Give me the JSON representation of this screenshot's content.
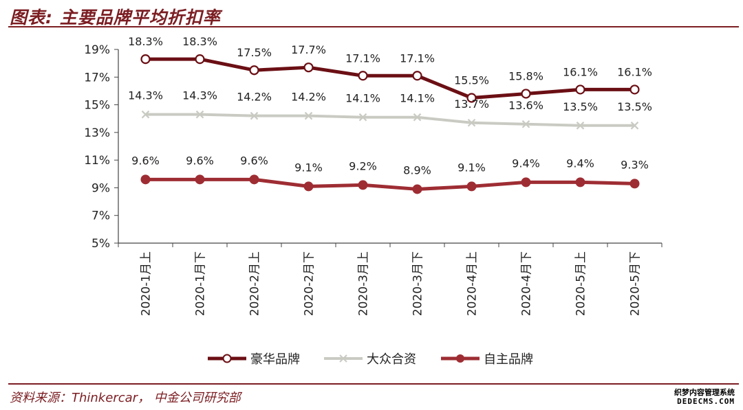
{
  "header": {
    "title": "图表: 主要品牌平均折扣率"
  },
  "footer": {
    "source": "资料来源：Thinkercar， 中金公司研究部"
  },
  "watermark": {
    "line1": "织梦内容管理系统",
    "line2": "DEDECMS.COM"
  },
  "colors": {
    "accent": "#7b1d22",
    "luxury": "#6b0f14",
    "joint": "#c9cbc3",
    "domestic": "#9e2d33"
  },
  "chart_data": {
    "type": "line",
    "title": "图表: 主要品牌平均折扣率",
    "xlabel": "",
    "ylabel": "",
    "categories": [
      "2020-1月上",
      "2020-1月下",
      "2020-2月上",
      "2020-2月下",
      "2020-3月上",
      "2020-3月下",
      "2020-4月上",
      "2020-4月下",
      "2020-5月上",
      "2020-5月下"
    ],
    "ylim": [
      5,
      19
    ],
    "yticks": [
      5,
      7,
      9,
      11,
      13,
      15,
      17,
      19
    ],
    "ytick_labels": [
      "5%",
      "7%",
      "9%",
      "11%",
      "13%",
      "15%",
      "17%",
      "19%"
    ],
    "grid": false,
    "legend_position": "bottom",
    "series": [
      {
        "name": "豪华品牌",
        "values": [
          18.3,
          18.3,
          17.5,
          17.7,
          17.1,
          17.1,
          15.5,
          15.8,
          16.1,
          16.1
        ],
        "labels": [
          "18.3%",
          "18.3%",
          "17.5%",
          "17.7%",
          "17.1%",
          "17.1%",
          "15.5%",
          "15.8%",
          "16.1%",
          "16.1%"
        ],
        "color": "#6b0f14",
        "marker": "hollow-circle"
      },
      {
        "name": "大众合资",
        "values": [
          14.3,
          14.3,
          14.2,
          14.2,
          14.1,
          14.1,
          13.7,
          13.6,
          13.5,
          13.5
        ],
        "labels": [
          "14.3%",
          "14.3%",
          "14.2%",
          "14.2%",
          "14.1%",
          "14.1%",
          "13.7%",
          "13.6%",
          "13.5%",
          "13.5%"
        ],
        "color": "#c9cbc3",
        "marker": "x"
      },
      {
        "name": "自主品牌",
        "values": [
          9.6,
          9.6,
          9.6,
          9.1,
          9.2,
          8.9,
          9.1,
          9.4,
          9.4,
          9.3
        ],
        "labels": [
          "9.6%",
          "9.6%",
          "9.6%",
          "9.1%",
          "9.2%",
          "8.9%",
          "9.1%",
          "9.4%",
          "9.4%",
          "9.3%"
        ],
        "color": "#9e2d33",
        "marker": "filled-circle"
      }
    ]
  }
}
